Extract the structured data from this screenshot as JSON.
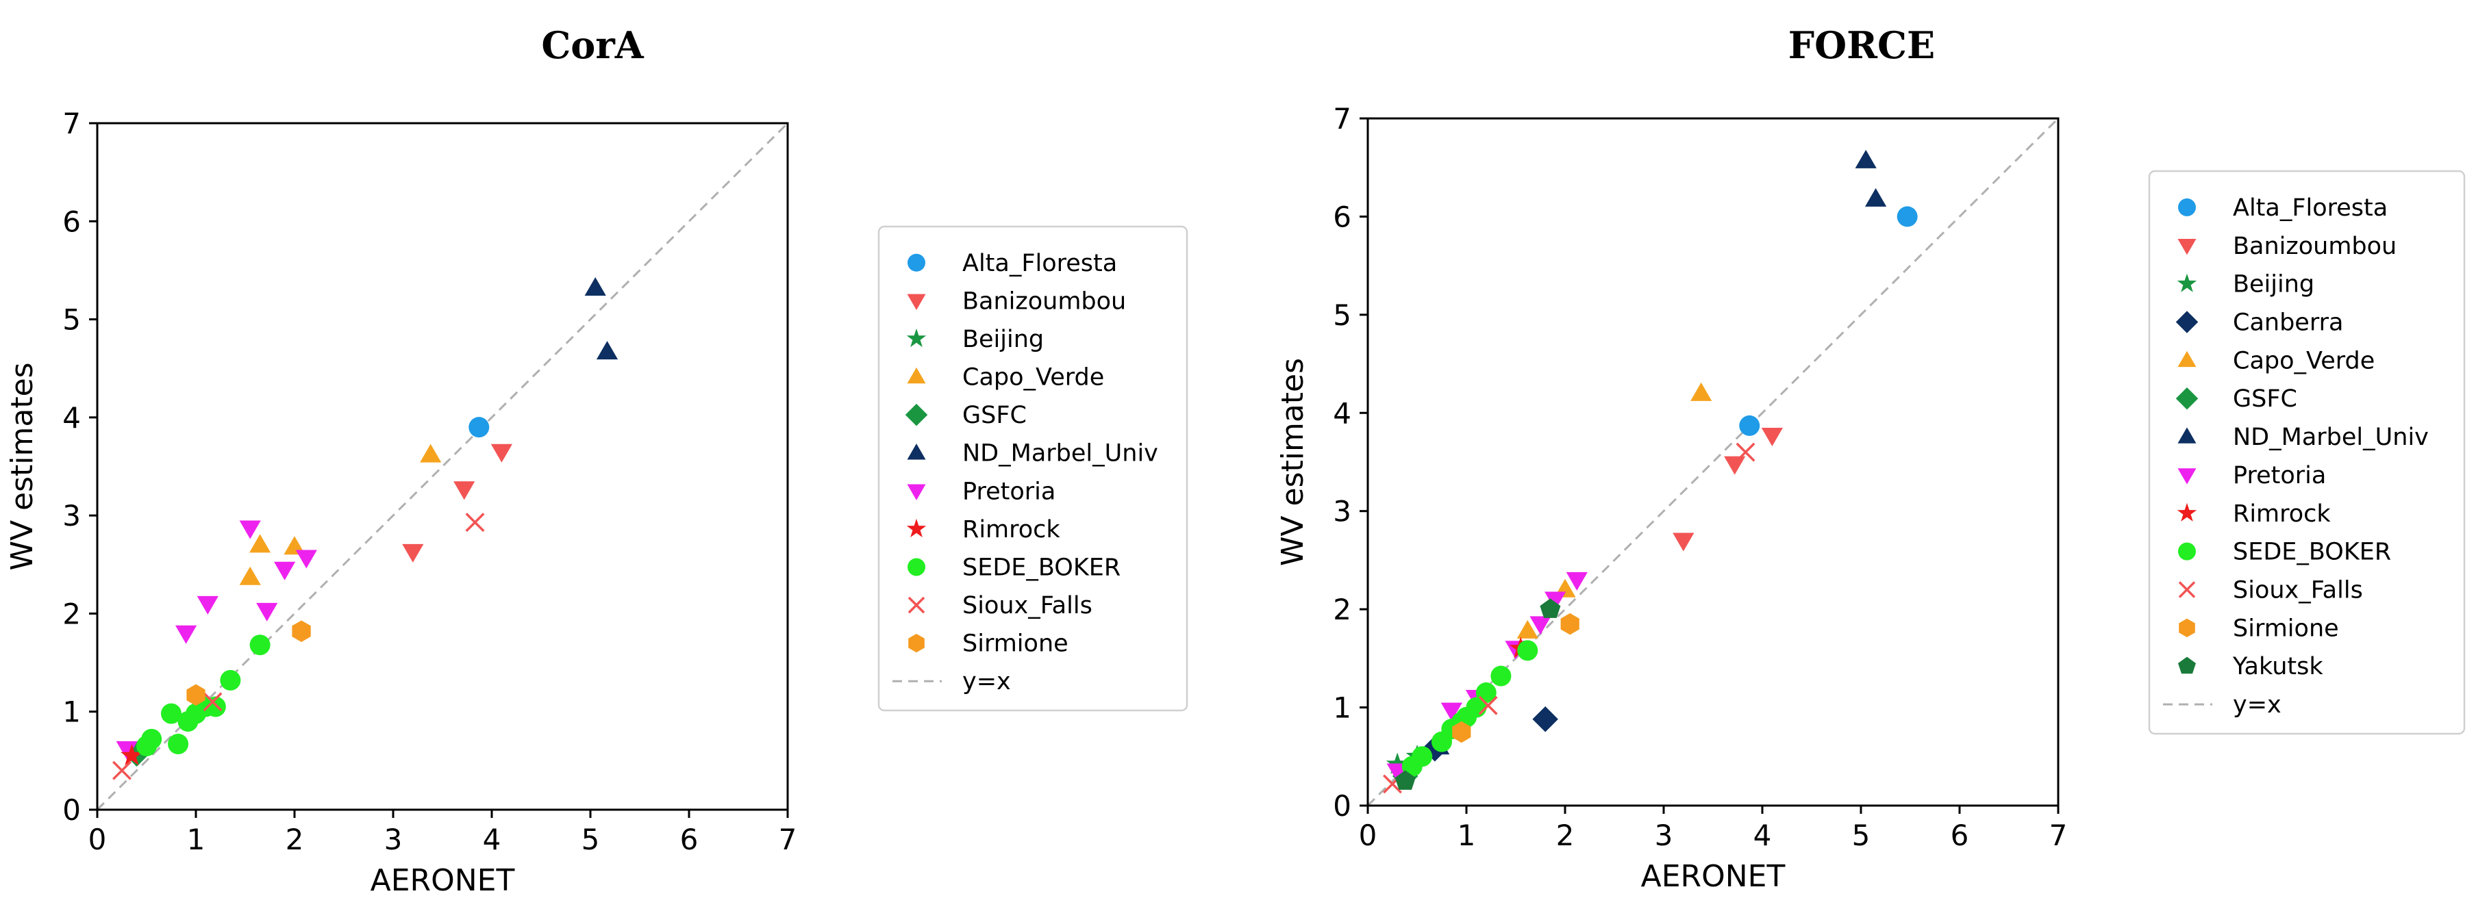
{
  "chart_data": [
    {
      "type": "scatter",
      "title": "CorA",
      "xlabel": "AERONET",
      "ylabel": "WV estimates",
      "xlim": [
        0,
        7
      ],
      "ylim": [
        0,
        7
      ],
      "xticks": [
        "0",
        "1",
        "2",
        "3",
        "4",
        "5",
        "6",
        "7"
      ],
      "yticks": [
        "0",
        "1",
        "2",
        "3",
        "4",
        "5",
        "6",
        "7"
      ],
      "grid": false,
      "legend_position": "outside-right",
      "reference_line": {
        "name": "y=x",
        "color": "#b0b0b0",
        "style": "dashed"
      },
      "series": [
        {
          "name": "Alta_Floresta",
          "marker": "circle",
          "color": "#1f9be8",
          "points": [
            [
              3.87,
              3.9
            ]
          ]
        },
        {
          "name": "Banizoumbou",
          "marker": "triangle-down",
          "color": "#f25454",
          "points": [
            [
              3.2,
              2.63
            ],
            [
              3.72,
              3.27
            ],
            [
              4.1,
              3.65
            ]
          ]
        },
        {
          "name": "Beijing",
          "marker": "star",
          "color": "#1a9641",
          "points": [
            [
              0.5,
              0.65
            ]
          ]
        },
        {
          "name": "Capo_Verde",
          "marker": "triangle-up",
          "color": "#f5a31f",
          "points": [
            [
              3.38,
              3.62
            ],
            [
              1.55,
              2.37
            ],
            [
              1.65,
              2.7
            ],
            [
              2.0,
              2.68
            ]
          ]
        },
        {
          "name": "GSFC",
          "marker": "diamond",
          "color": "#1a9641",
          "points": [
            [
              0.4,
              0.57
            ]
          ]
        },
        {
          "name": "ND_Marbel_Univ",
          "marker": "triangle-up",
          "color": "#0d2f61",
          "points": [
            [
              5.05,
              5.32
            ],
            [
              5.17,
              4.67
            ]
          ]
        },
        {
          "name": "Pretoria",
          "marker": "triangle-down",
          "color": "#ee22ee",
          "points": [
            [
              0.3,
              0.62
            ],
            [
              0.9,
              1.8
            ],
            [
              1.12,
              2.1
            ],
            [
              1.55,
              2.87
            ],
            [
              1.72,
              2.03
            ],
            [
              1.9,
              2.45
            ],
            [
              2.12,
              2.57
            ]
          ]
        },
        {
          "name": "Rimrock",
          "marker": "star",
          "color": "#ee1c1c",
          "points": [
            [
              0.35,
              0.55
            ]
          ]
        },
        {
          "name": "SEDE_BOKER",
          "marker": "circle",
          "color": "#22ee22",
          "points": [
            [
              0.5,
              0.65
            ],
            [
              0.55,
              0.72
            ],
            [
              0.75,
              0.98
            ],
            [
              0.82,
              0.67
            ],
            [
              0.92,
              0.9
            ],
            [
              1.0,
              0.98
            ],
            [
              1.1,
              1.05
            ],
            [
              1.2,
              1.05
            ],
            [
              1.35,
              1.32
            ],
            [
              1.65,
              1.68
            ]
          ]
        },
        {
          "name": "Sioux_Falls",
          "marker": "x",
          "color": "#f25454",
          "points": [
            [
              0.25,
              0.4
            ],
            [
              3.83,
              2.93
            ],
            [
              1.17,
              1.1
            ]
          ]
        },
        {
          "name": "Sirmione",
          "marker": "hexagon",
          "color": "#f59a1f",
          "points": [
            [
              1.0,
              1.17
            ],
            [
              2.07,
              1.82
            ]
          ]
        }
      ]
    },
    {
      "type": "scatter",
      "title": "FORCE",
      "xlabel": "AERONET",
      "ylabel": "WV estimates",
      "xlim": [
        0,
        7
      ],
      "ylim": [
        0,
        7
      ],
      "xticks": [
        "0",
        "1",
        "2",
        "3",
        "4",
        "5",
        "6",
        "7"
      ],
      "yticks": [
        "0",
        "1",
        "2",
        "3",
        "4",
        "5",
        "6",
        "7"
      ],
      "grid": false,
      "legend_position": "outside-right",
      "reference_line": {
        "name": "y=x",
        "color": "#b0b0b0",
        "style": "dashed"
      },
      "series": [
        {
          "name": "Alta_Floresta",
          "marker": "circle",
          "color": "#1f9be8",
          "points": [
            [
              3.87,
              3.87
            ],
            [
              5.47,
              6.0
            ]
          ]
        },
        {
          "name": "Banizoumbou",
          "marker": "triangle-down",
          "color": "#f25454",
          "points": [
            [
              3.2,
              2.7
            ],
            [
              3.72,
              3.48
            ],
            [
              4.1,
              3.77
            ]
          ]
        },
        {
          "name": "Beijing",
          "marker": "star",
          "color": "#1a9641",
          "points": [
            [
              0.3,
              0.42
            ],
            [
              0.5,
              0.5
            ]
          ]
        },
        {
          "name": "Canberra",
          "marker": "diamond",
          "color": "#0d2f61",
          "points": [
            [
              1.8,
              0.88
            ],
            [
              0.68,
              0.58
            ]
          ]
        },
        {
          "name": "Capo_Verde",
          "marker": "triangle-up",
          "color": "#f5a31f",
          "points": [
            [
              3.38,
              4.2
            ],
            [
              1.62,
              1.78
            ],
            [
              2.0,
              2.2
            ]
          ]
        },
        {
          "name": "GSFC",
          "marker": "diamond",
          "color": "#1a9641",
          "points": [
            [
              0.38,
              0.3
            ]
          ]
        },
        {
          "name": "ND_Marbel_Univ",
          "marker": "triangle-up",
          "color": "#0d2f61",
          "points": [
            [
              5.05,
              6.57
            ],
            [
              5.15,
              6.18
            ],
            [
              0.72,
              0.6
            ]
          ]
        },
        {
          "name": "Pretoria",
          "marker": "triangle-down",
          "color": "#ee22ee",
          "points": [
            [
              0.3,
              0.35
            ],
            [
              0.85,
              0.97
            ],
            [
              1.1,
              1.1
            ],
            [
              1.5,
              1.6
            ],
            [
              1.75,
              1.85
            ],
            [
              1.9,
              2.1
            ],
            [
              2.12,
              2.3
            ]
          ]
        },
        {
          "name": "Rimrock",
          "marker": "star",
          "color": "#ee1c1c",
          "points": [
            [
              1.55,
              1.6
            ]
          ]
        },
        {
          "name": "SEDE_BOKER",
          "marker": "circle",
          "color": "#22ee22",
          "points": [
            [
              0.45,
              0.4
            ],
            [
              0.55,
              0.5
            ],
            [
              0.75,
              0.65
            ],
            [
              0.85,
              0.78
            ],
            [
              0.95,
              0.85
            ],
            [
              1.0,
              0.9
            ],
            [
              1.1,
              1.0
            ],
            [
              1.2,
              1.15
            ],
            [
              1.35,
              1.32
            ],
            [
              1.62,
              1.58
            ]
          ]
        },
        {
          "name": "Sioux_Falls",
          "marker": "x",
          "color": "#f25454",
          "points": [
            [
              0.25,
              0.22
            ],
            [
              3.83,
              3.6
            ],
            [
              1.22,
              1.02
            ]
          ]
        },
        {
          "name": "Sirmione",
          "marker": "hexagon",
          "color": "#f59a1f",
          "points": [
            [
              0.95,
              0.75
            ],
            [
              2.05,
              1.85
            ]
          ]
        },
        {
          "name": "Yakutsk",
          "marker": "pentagon",
          "color": "#1a7a3a",
          "points": [
            [
              0.38,
              0.25
            ],
            [
              1.85,
              2.0
            ]
          ]
        }
      ]
    }
  ]
}
